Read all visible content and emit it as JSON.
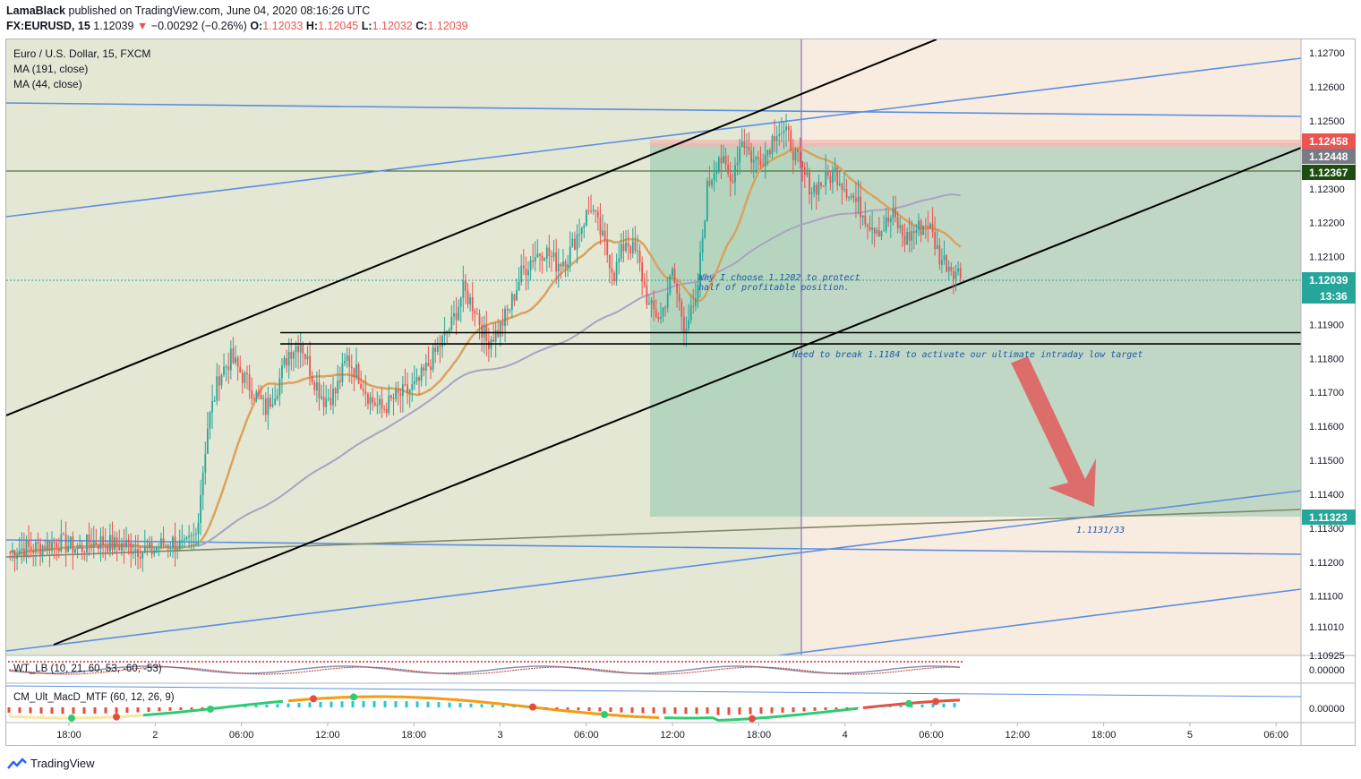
{
  "header": {
    "author": "LamaBlack",
    "published_text": "published on TradingView.com, June 04, 2020 08:16:26 UTC",
    "symbol": "FX:EURUSD, 15",
    "last": "1.12039",
    "change_arrow": "▼",
    "change": "−0.00292 (−0.26%)",
    "o_label": "O:",
    "o": "1.12033",
    "h_label": "H:",
    "h": "1.12045",
    "l_label": "L:",
    "l": "1.12032",
    "c_label": "C:",
    "c": "1.12039"
  },
  "legend": {
    "title": "Euro / U.S. Dollar, 15, FXCM",
    "ma1": "MA (191, close)",
    "ma2": "MA (44, close)"
  },
  "indicators": {
    "wt": "WT_LB (10, 21, 60, 53, -60, -53)",
    "macd": "CM_Ult_MacD_MTF (60, 12, 26, 9)",
    "wt_value": "0.00000",
    "macd_value": "0.00000"
  },
  "annotations": {
    "protect_line1": "Why I choose 1.1202 to protect",
    "protect_line2": "half of profitable position.",
    "break_text": "Need to break 1.1184 to activate our ultimate intraday low target",
    "target": "1.1131/33"
  },
  "price_labels": {
    "top_red": "1.12458",
    "gray": "1.12448",
    "dark_green": "1.12367",
    "current": "1.12039",
    "countdown": "13:36",
    "bottom_green": "1.11323"
  },
  "colors": {
    "up": "#26a69a",
    "down": "#ef5350",
    "ma44": "#d9a35e",
    "ma191": "#a9a3c2",
    "trend_blue": "#5b8fdf",
    "channel": "#000000",
    "green_box": "#7fbfa3",
    "session_bg": "#e3e7d4",
    "future_bg": "#f8ebe0"
  },
  "branding": {
    "logo_text": "TradingView"
  },
  "chart_data": {
    "type": "candlestick",
    "symbol": "EURUSD",
    "timeframe": "15",
    "ylim": [
      1.10925,
      1.1274
    ],
    "y_ticks": [
      "1.12700",
      "1.12600",
      "1.12500",
      "1.12300",
      "1.12200",
      "1.12100",
      "1.11900",
      "1.11800",
      "1.11700",
      "1.11600",
      "1.11500",
      "1.11400",
      "1.11300",
      "1.11200",
      "1.11100",
      "1.11010",
      "1.10925"
    ],
    "x_ticks": [
      "18:00",
      "2",
      "06:00",
      "12:00",
      "18:00",
      "3",
      "06:00",
      "12:00",
      "18:00",
      "4",
      "06:00",
      "12:00",
      "18:00",
      "5",
      "06:00"
    ],
    "horizontal_levels": [
      1.11876,
      1.11843
    ],
    "close_path": [
      1.1123,
      1.1124,
      1.1124,
      1.1125,
      1.1126,
      1.1125,
      1.1124,
      1.1126,
      1.1126,
      1.1125,
      1.1125,
      1.1124,
      1.1123,
      1.1125,
      1.1126,
      1.1124,
      1.1128,
      1.116,
      1.1175,
      1.118,
      1.1175,
      1.117,
      1.1165,
      1.1172,
      1.1182,
      1.1185,
      1.1175,
      1.1168,
      1.117,
      1.118,
      1.1175,
      1.1168,
      1.1165,
      1.1168,
      1.117,
      1.1172,
      1.1178,
      1.1184,
      1.119,
      1.12,
      1.1195,
      1.1185,
      1.1188,
      1.1195,
      1.1205,
      1.121,
      1.1212,
      1.1208,
      1.121,
      1.1218,
      1.1225,
      1.1215,
      1.1205,
      1.1215,
      1.121,
      1.1195,
      1.1192,
      1.1205,
      1.119,
      1.1195,
      1.123,
      1.124,
      1.1232,
      1.1245,
      1.1238,
      1.124,
      1.1248,
      1.1245,
      1.1236,
      1.123,
      1.1232,
      1.1235,
      1.123,
      1.1225,
      1.122,
      1.1218,
      1.1222,
      1.1215,
      1.1218,
      1.122,
      1.121,
      1.1207,
      1.1204
    ]
  }
}
